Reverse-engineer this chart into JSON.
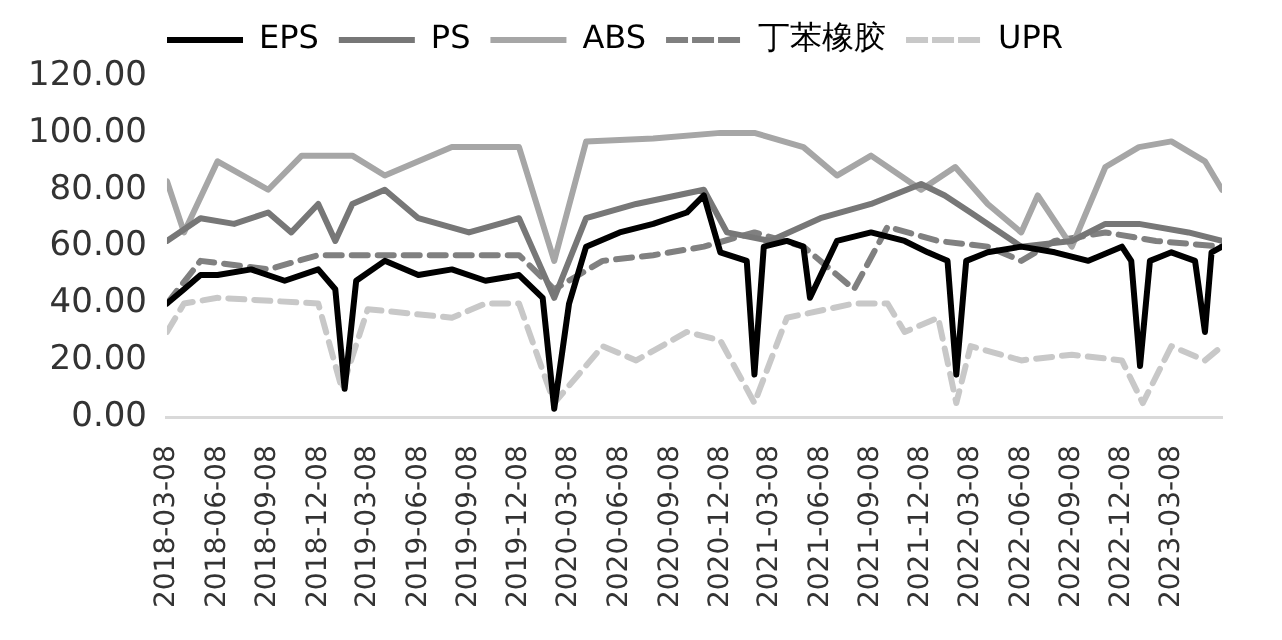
{
  "chart_data": {
    "type": "line",
    "ylim": [
      0,
      120
    ],
    "yticks": [
      {
        "value": 0,
        "label": "0.00"
      },
      {
        "value": 20,
        "label": "20.00"
      },
      {
        "value": 40,
        "label": "40.00"
      },
      {
        "value": 60,
        "label": "60.00"
      },
      {
        "value": 80,
        "label": "80.00"
      },
      {
        "value": 100,
        "label": "100.00"
      },
      {
        "value": 120,
        "label": "120.00"
      }
    ],
    "xlim": [
      "2018-03-08",
      "2023-06-08"
    ],
    "xticks": [
      "2018-03-08",
      "2018-06-08",
      "2018-09-08",
      "2018-12-08",
      "2019-03-08",
      "2019-06-08",
      "2019-09-08",
      "2019-12-08",
      "2020-03-08",
      "2020-06-08",
      "2020-09-08",
      "2020-12-08",
      "2021-03-08",
      "2021-06-08",
      "2021-09-08",
      "2021-12-08",
      "2022-03-08",
      "2022-06-08",
      "2022-09-08",
      "2022-12-08",
      "2023-03-08"
    ],
    "grid": false,
    "legend": "top",
    "marker": "none",
    "series": [
      {
        "name": "EPS",
        "color": "#000000",
        "line_style": "solid",
        "x": [
          "2018-03-08",
          "2018-04-08",
          "2018-05-08",
          "2018-06-08",
          "2018-08-08",
          "2018-10-08",
          "2018-12-08",
          "2019-01-08",
          "2019-01-25",
          "2019-02-15",
          "2019-04-08",
          "2019-06-08",
          "2019-08-08",
          "2019-10-08",
          "2019-12-08",
          "2020-01-20",
          "2020-02-10",
          "2020-03-08",
          "2020-04-08",
          "2020-06-08",
          "2020-08-08",
          "2020-10-08",
          "2020-11-08",
          "2020-12-08",
          "2021-01-25",
          "2021-02-08",
          "2021-02-25",
          "2021-04-08",
          "2021-05-08",
          "2021-05-20",
          "2021-07-08",
          "2021-09-08",
          "2021-11-08",
          "2021-12-20",
          "2022-01-25",
          "2022-02-10",
          "2022-02-28",
          "2022-04-08",
          "2022-06-08",
          "2022-08-08",
          "2022-10-08",
          "2022-12-08",
          "2022-12-25",
          "2023-01-10",
          "2023-01-28",
          "2023-03-08",
          "2023-04-20",
          "2023-05-08",
          "2023-05-20",
          "2023-06-08"
        ],
        "values": [
          40,
          45,
          50,
          50,
          52,
          48,
          52,
          45,
          10,
          48,
          55,
          50,
          52,
          48,
          50,
          42,
          3,
          40,
          60,
          65,
          68,
          72,
          78,
          58,
          55,
          15,
          60,
          62,
          60,
          42,
          62,
          65,
          62,
          58,
          55,
          15,
          55,
          58,
          60,
          58,
          55,
          60,
          55,
          18,
          55,
          58,
          55,
          30,
          58,
          60
        ]
      },
      {
        "name": "PS",
        "color": "#777777",
        "line_style": "solid",
        "x": [
          "2018-03-08",
          "2018-05-08",
          "2018-07-08",
          "2018-09-08",
          "2018-10-20",
          "2018-12-08",
          "2019-01-08",
          "2019-02-08",
          "2019-04-08",
          "2019-06-08",
          "2019-09-08",
          "2019-12-08",
          "2020-02-10",
          "2020-04-08",
          "2020-07-08",
          "2020-11-08",
          "2020-12-20",
          "2021-03-08",
          "2021-06-08",
          "2021-09-08",
          "2021-12-08",
          "2022-01-20",
          "2022-03-08",
          "2022-06-08",
          "2022-09-08",
          "2022-11-08",
          "2023-01-08",
          "2023-04-08",
          "2023-06-08"
        ],
        "values": [
          62,
          70,
          68,
          72,
          65,
          75,
          62,
          75,
          80,
          70,
          65,
          70,
          42,
          70,
          75,
          80,
          65,
          62,
          70,
          75,
          82,
          78,
          72,
          60,
          62,
          68,
          68,
          65,
          62
        ]
      },
      {
        "name": "ABS",
        "color": "#a6a6a6",
        "line_style": "solid",
        "x": [
          "2018-03-08",
          "2018-04-08",
          "2018-06-08",
          "2018-09-08",
          "2018-11-08",
          "2019-02-08",
          "2019-04-08",
          "2019-08-08",
          "2019-12-08",
          "2020-02-10",
          "2020-04-08",
          "2020-08-08",
          "2020-12-08",
          "2021-02-08",
          "2021-05-08",
          "2021-07-08",
          "2021-09-08",
          "2021-12-08",
          "2022-02-08",
          "2022-04-08",
          "2022-06-08",
          "2022-07-08",
          "2022-09-08",
          "2022-11-08",
          "2023-01-08",
          "2023-03-08",
          "2023-05-08",
          "2023-06-08"
        ],
        "values": [
          83,
          65,
          90,
          80,
          92,
          92,
          85,
          95,
          95,
          55,
          97,
          98,
          100,
          100,
          95,
          85,
          92,
          80,
          88,
          75,
          65,
          78,
          60,
          88,
          95,
          97,
          90,
          80
        ]
      },
      {
        "name": "丁苯橡胶",
        "color": "#808080",
        "line_style": "dashed",
        "x": [
          "2018-03-08",
          "2018-05-08",
          "2018-09-08",
          "2018-12-08",
          "2019-03-08",
          "2019-12-08",
          "2020-02-10",
          "2020-05-08",
          "2020-08-08",
          "2020-11-08",
          "2021-02-08",
          "2021-05-08",
          "2021-08-08",
          "2021-10-08",
          "2022-01-08",
          "2022-04-08",
          "2022-06-08",
          "2022-08-08",
          "2022-11-08",
          "2023-02-08",
          "2023-06-08"
        ],
        "values": [
          40,
          55,
          52,
          57,
          57,
          57,
          45,
          55,
          57,
          60,
          65,
          60,
          45,
          67,
          62,
          60,
          55,
          62,
          65,
          62,
          60
        ]
      },
      {
        "name": "UPR",
        "color": "#c8c8c8",
        "line_style": "dashed",
        "x": [
          "2018-03-08",
          "2018-04-08",
          "2018-06-08",
          "2018-12-08",
          "2019-01-20",
          "2019-03-08",
          "2019-08-08",
          "2019-10-08",
          "2019-12-08",
          "2020-02-10",
          "2020-05-08",
          "2020-07-08",
          "2020-10-08",
          "2020-12-08",
          "2021-02-08",
          "2021-04-08",
          "2021-08-08",
          "2021-10-08",
          "2021-11-08",
          "2022-01-08",
          "2022-02-10",
          "2022-03-08",
          "2022-06-08",
          "2022-09-08",
          "2022-12-08",
          "2023-01-15",
          "2023-03-08",
          "2023-05-08",
          "2023-06-08"
        ],
        "values": [
          30,
          40,
          42,
          40,
          10,
          38,
          35,
          40,
          40,
          5,
          25,
          20,
          30,
          27,
          5,
          35,
          40,
          40,
          30,
          35,
          5,
          25,
          20,
          22,
          20,
          5,
          25,
          20,
          25
        ]
      }
    ]
  }
}
